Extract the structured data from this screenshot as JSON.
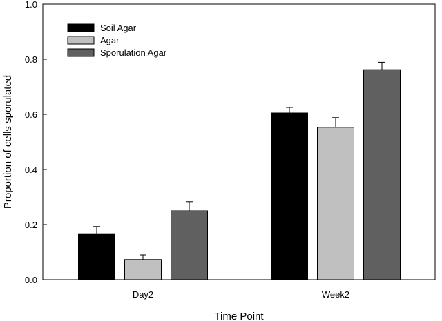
{
  "chart_data": {
    "type": "bar",
    "xlabel": "Time Point",
    "ylabel": "Proportion of cells sporulated",
    "categories": [
      "Day2",
      "Week2"
    ],
    "ylim": [
      0,
      1.0
    ],
    "yticks": [
      "0.0",
      "0.2",
      "0.4",
      "0.6",
      "0.8",
      "1.0"
    ],
    "grid": false,
    "legend_position": "top-left",
    "series": [
      {
        "name": "Soil Agar",
        "color": "#000000",
        "values": [
          0.167,
          0.605
        ],
        "errors": [
          0.026,
          0.02
        ]
      },
      {
        "name": "Agar",
        "color": "#c0c0c0",
        "values": [
          0.073,
          0.553
        ],
        "errors": [
          0.017,
          0.035
        ]
      },
      {
        "name": "Sporulation Agar",
        "color": "#606060",
        "values": [
          0.25,
          0.762
        ],
        "errors": [
          0.033,
          0.027
        ]
      }
    ]
  }
}
